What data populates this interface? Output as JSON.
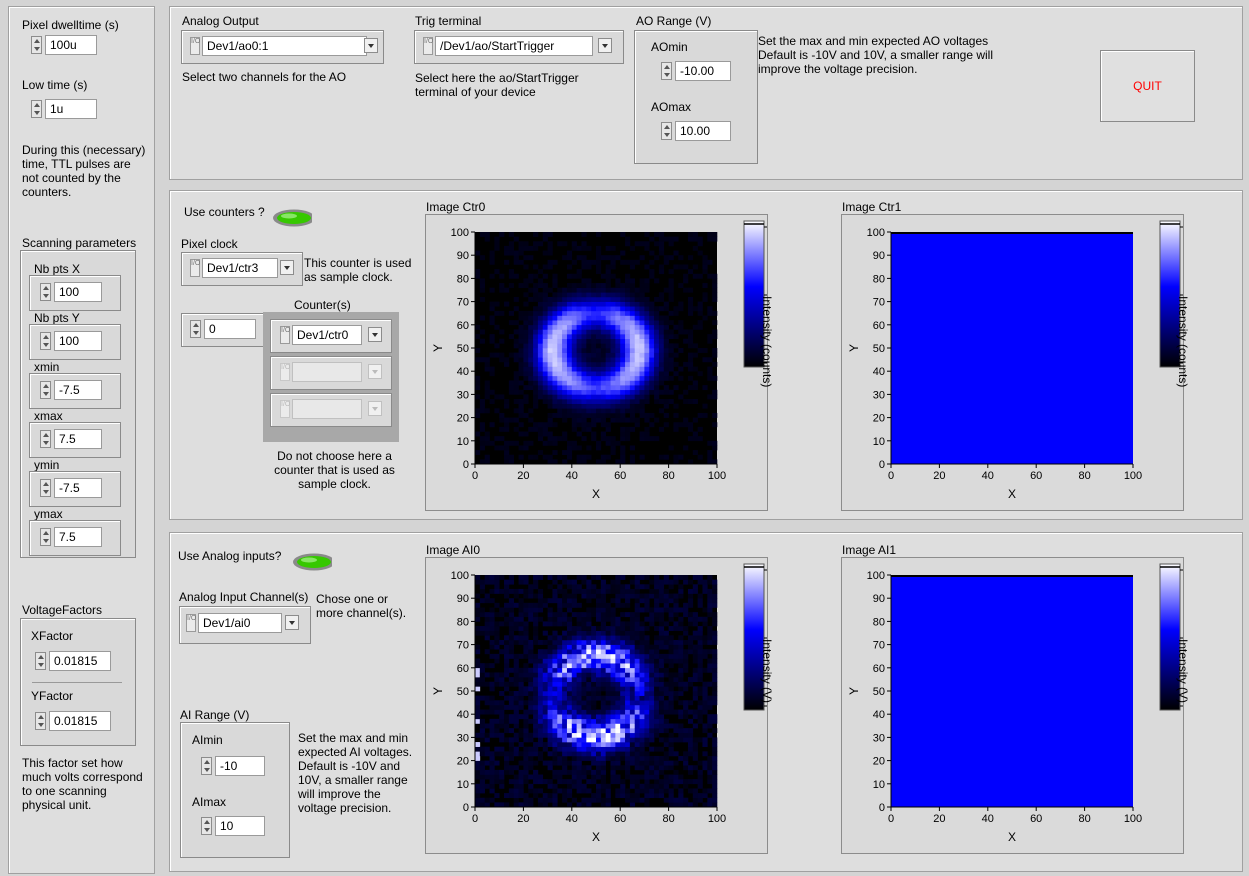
{
  "left": {
    "dwell_label": "Pixel dwelltime (s)",
    "dwell_value": "100u",
    "low_label": "Low time (s)",
    "low_value": "1u",
    "low_note": "During this (necessary) time, TTL pulses are not counted by the counters.",
    "scan_title": "Scanning parameters",
    "scan_params": [
      {
        "label": "Nb pts X",
        "value": "100"
      },
      {
        "label": "Nb pts Y",
        "value": "100"
      },
      {
        "label": "xmin",
        "value": "-7.5"
      },
      {
        "label": "xmax",
        "value": "7.5"
      },
      {
        "label": "ymin",
        "value": "-7.5"
      },
      {
        "label": "ymax",
        "value": "7.5"
      }
    ],
    "vf_title": "VoltageFactors",
    "xfactor_label": "XFactor",
    "xfactor_value": "0.01815",
    "yfactor_label": "YFactor",
    "yfactor_value": "0.01815",
    "vf_note": "This factor set how much volts correspond to one scanning physical unit."
  },
  "top": {
    "ao_label": "Analog Output",
    "ao_value": "Dev1/ao0:1",
    "ao_note": "Select two channels for the AO",
    "trig_label": "Trig terminal",
    "trig_value": "/Dev1/ao/StartTrigger",
    "trig_note": "Select here the ao/StartTrigger terminal of your device",
    "range_label": "AO Range (V)",
    "aomin_label": "AOmin",
    "aomin_value": "-10.00",
    "aomax_label": "AOmax",
    "aomax_value": "10.00",
    "range_note": "Set the max and min expected AO voltages Default is -10V and 10V, a smaller range will improve the voltage precision.",
    "quit_label": "QUIT"
  },
  "counters": {
    "use_label": "Use counters ?",
    "pixel_clock_label": "Pixel clock",
    "pixel_clock_value": "Dev1/ctr3",
    "pixel_clock_note": "This counter is used as sample clock.",
    "counters_label": "Counter(s)",
    "index_value": "0",
    "counter_values": [
      "Dev1/ctr0",
      "",
      ""
    ],
    "counter_note": "Do not choose here a counter that is used as sample clock.",
    "image0_title": "Image Ctr0",
    "image1_title": "Image Ctr1"
  },
  "analog": {
    "use_label": "Use Analog inputs?",
    "channel_label": "Analog Input Channel(s)",
    "channel_value": "Dev1/ai0",
    "channel_note": "Chose one or more channel(s).",
    "range_label": "AI Range (V)",
    "aimin_label": "AImin",
    "aimin_value": "-10",
    "aimax_label": "AImax",
    "aimax_value": "10",
    "range_note": "Set the max and min expected AI voltages. Default is -10V and 10V, a smaller range will improve the voltage precision.",
    "image0_title": "Image AI0",
    "image1_title": "Image AI1"
  },
  "colors": {
    "accent_led": "#36c800",
    "quit_text": "#ff0000",
    "flat_blue": "#0000ff"
  },
  "chart_data": [
    {
      "type": "heatmap",
      "title": "Image Ctr0",
      "xlabel": "X",
      "ylabel": "Y",
      "xlim": [
        0,
        100
      ],
      "ylim": [
        0,
        100
      ],
      "x_ticks": [
        "0",
        "20",
        "40",
        "60",
        "80",
        "100"
      ],
      "y_ticks": [
        "0",
        "10",
        "20",
        "30",
        "40",
        "50",
        "60",
        "70",
        "80",
        "90",
        "100"
      ],
      "colorbar_label": "Intensity (counts)",
      "colorbar_ticks": [
        "250",
        "125",
        "0"
      ],
      "colorbar_range": [
        0,
        250
      ]
    },
    {
      "type": "heatmap",
      "title": "Image Ctr1",
      "xlabel": "X",
      "ylabel": "Y",
      "xlim": [
        0,
        100
      ],
      "ylim": [
        0,
        100
      ],
      "x_ticks": [
        "0",
        "20",
        "40",
        "60",
        "80",
        "100"
      ],
      "y_ticks": [
        "0",
        "10",
        "20",
        "30",
        "40",
        "50",
        "60",
        "70",
        "80",
        "90",
        "100"
      ],
      "colorbar_label": "Intensity (counts)",
      "colorbar_ticks": [
        "1",
        "0",
        "-1"
      ],
      "colorbar_range": [
        -1,
        1
      ],
      "fill_value": 0
    },
    {
      "type": "heatmap",
      "title": "Image AI0",
      "xlabel": "X",
      "ylabel": "Y",
      "xlim": [
        0,
        100
      ],
      "ylim": [
        0,
        100
      ],
      "x_ticks": [
        "0",
        "20",
        "40",
        "60",
        "80",
        "100"
      ],
      "y_ticks": [
        "0",
        "10",
        "20",
        "30",
        "40",
        "50",
        "60",
        "70",
        "80",
        "90",
        "100"
      ],
      "colorbar_label": "Intensity (V)",
      "colorbar_ticks": [
        "0.8",
        "0.4",
        "0"
      ],
      "colorbar_range": [
        0,
        0.8
      ]
    },
    {
      "type": "heatmap",
      "title": "Image AI1",
      "xlabel": "X",
      "ylabel": "Y",
      "xlim": [
        0,
        100
      ],
      "ylim": [
        0,
        100
      ],
      "x_ticks": [
        "0",
        "20",
        "40",
        "60",
        "80",
        "100"
      ],
      "y_ticks": [
        "0",
        "10",
        "20",
        "30",
        "40",
        "50",
        "60",
        "70",
        "80",
        "90",
        "100"
      ],
      "colorbar_label": "Intensity (V)",
      "colorbar_ticks": [
        "1",
        "0",
        "-1"
      ],
      "colorbar_range": [
        -1,
        1
      ],
      "fill_value": 0
    }
  ]
}
